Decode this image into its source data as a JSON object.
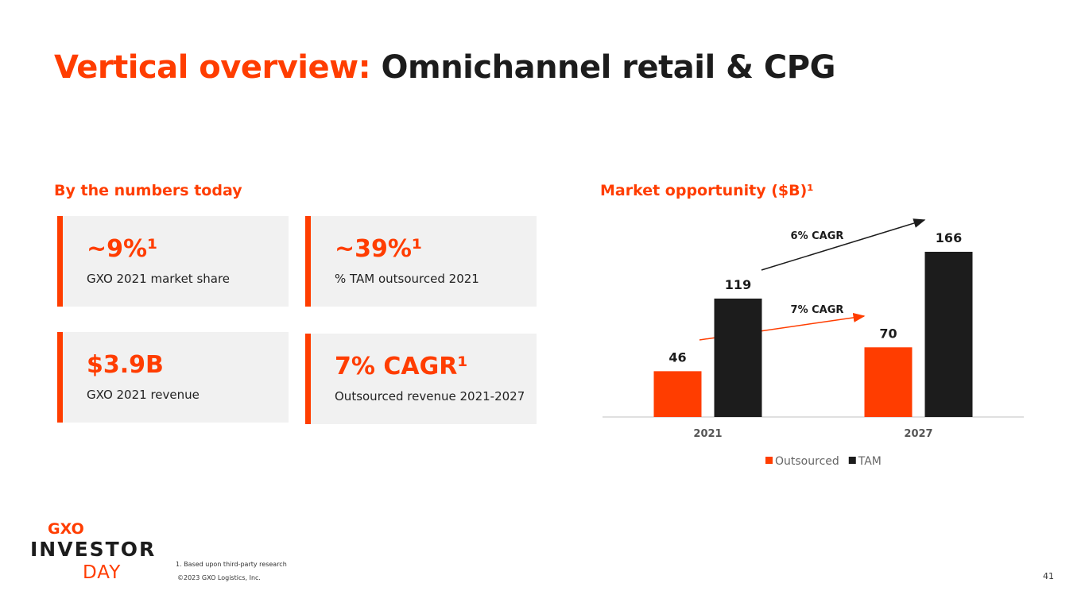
{
  "header": {
    "title_accent": "Vertical overview:",
    "title_rest": "Omnichannel retail & CPG"
  },
  "numbers": {
    "heading": "By the numbers today",
    "cards": [
      {
        "value": "~9%¹",
        "label": "GXO 2021 market share"
      },
      {
        "value": "~39%¹",
        "label": "% TAM outsourced 2021"
      },
      {
        "value": "$3.9B",
        "label": "GXO 2021 revenue"
      },
      {
        "value": "7% CAGR¹",
        "label": "Outsourced revenue 2021-2027"
      }
    ]
  },
  "chart_data": {
    "type": "bar",
    "title": "Market opportunity ($B)¹",
    "categories": [
      "2021",
      "2027"
    ],
    "series": [
      {
        "name": "Outsourced",
        "color": "#ff3d00",
        "values": [
          46,
          70
        ]
      },
      {
        "name": "TAM",
        "color": "#1c1c1c",
        "values": [
          119,
          166
        ]
      }
    ],
    "annotations": [
      "6% CAGR",
      "7% CAGR"
    ],
    "legend": "bottom"
  },
  "footer": {
    "logo_top": "GXO",
    "logo_mid": "INVESTOR",
    "logo_bottom": "DAY",
    "footnote": "1. Based upon third-party research",
    "copyright": "©2023 GXO Logistics, Inc.",
    "page": "41"
  }
}
